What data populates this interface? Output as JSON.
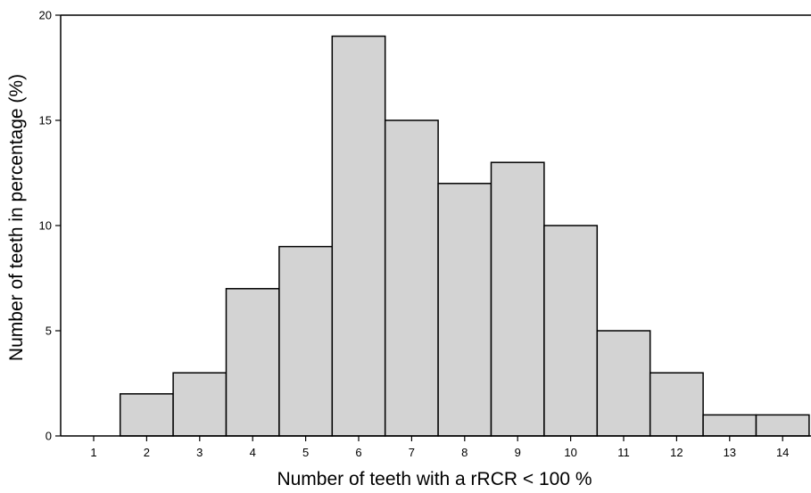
{
  "chart_data": {
    "type": "bar",
    "title": "",
    "xlabel": "Number of teeth with a rRCR < 100 %",
    "ylabel": "Number of teeth in percentage (%)",
    "categories": [
      "1",
      "2",
      "3",
      "4",
      "5",
      "6",
      "7",
      "8",
      "9",
      "10",
      "11",
      "12",
      "13",
      "14"
    ],
    "values": [
      0,
      2,
      3,
      7,
      9,
      19,
      15,
      12,
      13,
      10,
      5,
      3,
      1,
      1
    ],
    "ylim": [
      0,
      20
    ],
    "yticks": [
      "0",
      "5",
      "10",
      "15",
      "20"
    ],
    "grid": false,
    "legend": "none",
    "colors": {
      "bar_fill": "#d3d3d3",
      "bar_stroke": "#000000",
      "axis": "#000000"
    }
  }
}
